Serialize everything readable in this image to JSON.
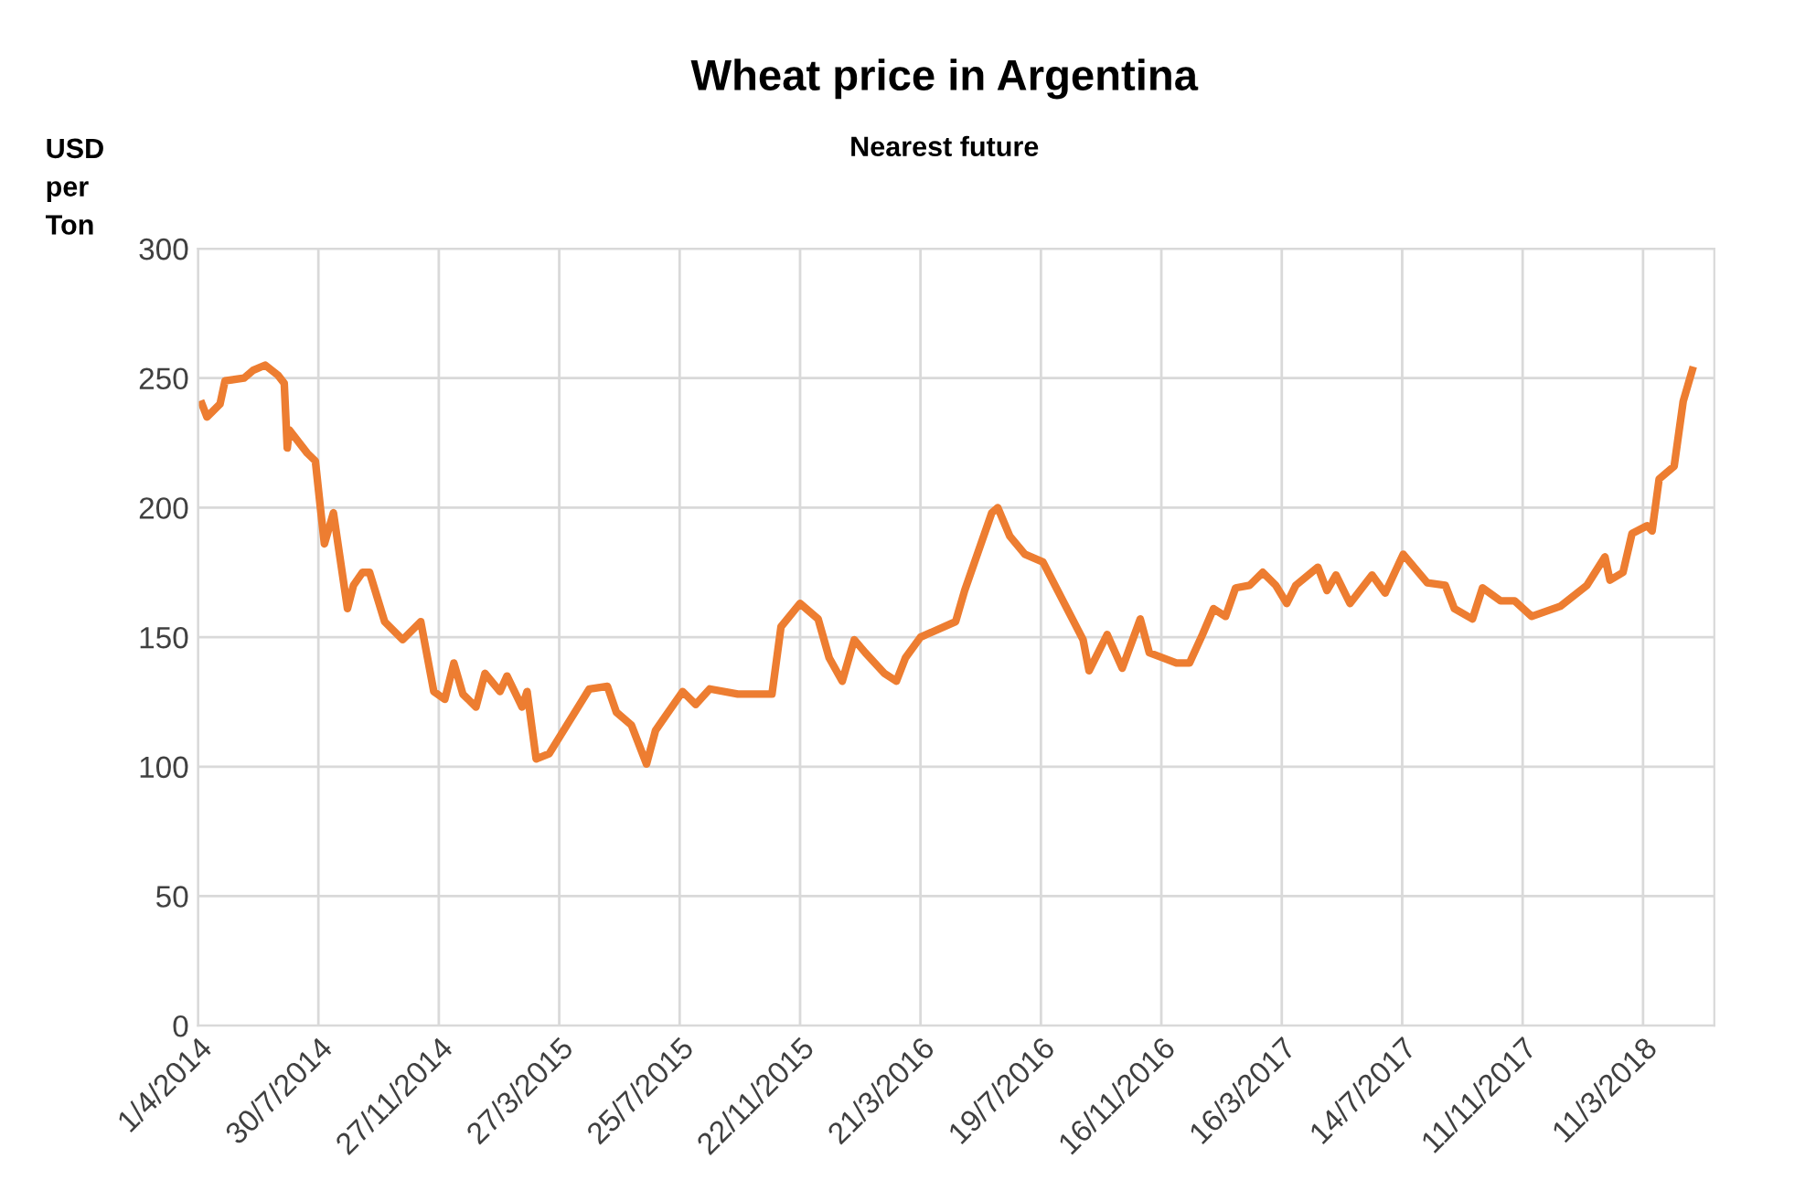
{
  "chart_data": {
    "type": "line",
    "title": "Wheat price in Argentina",
    "subtitle": "Nearest future",
    "ylabel": "USD\nper\nTon",
    "x": [
      "2014-04-05",
      "2014-04-10",
      "2014-04-23",
      "2014-04-28",
      "2014-05-17",
      "2014-05-26",
      "2014-06-07",
      "2014-06-20",
      "2014-06-26",
      "2014-06-29",
      "2014-07-01",
      "2014-07-19",
      "2014-07-27",
      "2014-08-01",
      "2014-08-05",
      "2014-08-14",
      "2014-08-28",
      "2014-09-03",
      "2014-09-12",
      "2014-09-19",
      "2014-10-04",
      "2014-10-22",
      "2014-11-09",
      "2014-11-22",
      "2014-12-03",
      "2014-12-12",
      "2014-12-21",
      "2015-01-03",
      "2015-01-12",
      "2015-01-27",
      "2015-02-03",
      "2015-02-18",
      "2015-02-23",
      "2015-03-04",
      "2015-03-17",
      "2015-04-26",
      "2015-05-14",
      "2015-05-23",
      "2015-06-07",
      "2015-06-22",
      "2015-07-01",
      "2015-07-10",
      "2015-07-28",
      "2015-08-10",
      "2015-08-24",
      "2015-09-21",
      "2015-10-25",
      "2015-11-03",
      "2015-11-22",
      "2015-12-10",
      "2015-12-21",
      "2016-01-03",
      "2016-01-15",
      "2016-01-26",
      "2016-02-14",
      "2016-02-26",
      "2016-03-06",
      "2016-03-21",
      "2016-04-25",
      "2016-05-04",
      "2016-05-31",
      "2016-06-06",
      "2016-06-18",
      "2016-07-03",
      "2016-07-21",
      "2016-08-30",
      "2016-09-05",
      "2016-09-23",
      "2016-10-08",
      "2016-10-26",
      "2016-11-04",
      "2016-12-01",
      "2016-12-14",
      "2016-12-27",
      "2017-01-07",
      "2017-01-19",
      "2017-01-29",
      "2017-02-12",
      "2017-02-25",
      "2017-03-10",
      "2017-03-21",
      "2017-03-30",
      "2017-04-21",
      "2017-04-30",
      "2017-05-09",
      "2017-05-23",
      "2017-06-14",
      "2017-06-27",
      "2017-07-15",
      "2017-08-08",
      "2017-08-26",
      "2017-09-04",
      "2017-09-22",
      "2017-10-02",
      "2017-10-20",
      "2017-11-03",
      "2017-11-20",
      "2017-12-19",
      "2018-01-14",
      "2018-02-01",
      "2018-02-06",
      "2018-02-19",
      "2018-02-28",
      "2018-03-15",
      "2018-03-20",
      "2018-03-27",
      "2018-04-11",
      "2018-04-20",
      "2018-04-29"
    ],
    "series": [
      {
        "color": "#ed7d31",
        "values": [
          240,
          235,
          240,
          249,
          250,
          253,
          255,
          251,
          248,
          223,
          230,
          221,
          218,
          200,
          186,
          198,
          161,
          170,
          175,
          175,
          156,
          149,
          156,
          129,
          126,
          140,
          128,
          123,
          136,
          129,
          135,
          123,
          129,
          103,
          105,
          130,
          131,
          121,
          116,
          101,
          114,
          119,
          129,
          124,
          130,
          128,
          128,
          154,
          163,
          157,
          142,
          133,
          149,
          144,
          136,
          133,
          142,
          150,
          156,
          168,
          198,
          200,
          189,
          182,
          179,
          149,
          137,
          151,
          138,
          157,
          144,
          140,
          140,
          151,
          161,
          158,
          169,
          170,
          175,
          170,
          163,
          170,
          177,
          168,
          174,
          163,
          174,
          167,
          182,
          171,
          170,
          161,
          157,
          169,
          164,
          164,
          158,
          162,
          170,
          181,
          172,
          175,
          190,
          193,
          191,
          211,
          216,
          241,
          253
        ]
      }
    ],
    "xlim": [
      "2014-04-01",
      "2018-05-21"
    ],
    "xticks": [
      {
        "value": "2014-04-01",
        "label": "1/4/2014"
      },
      {
        "value": "2014-07-30",
        "label": "30/7/2014"
      },
      {
        "value": "2014-11-27",
        "label": "27/11/2014"
      },
      {
        "value": "2015-03-27",
        "label": "27/3/2015"
      },
      {
        "value": "2015-07-25",
        "label": "25/7/2015"
      },
      {
        "value": "2015-11-22",
        "label": "22/11/2015"
      },
      {
        "value": "2016-03-21",
        "label": "21/3/2016"
      },
      {
        "value": "2016-07-19",
        "label": "19/7/2016"
      },
      {
        "value": "2016-11-16",
        "label": "16/11/2016"
      },
      {
        "value": "2017-03-16",
        "label": "16/3/2017"
      },
      {
        "value": "2017-07-14",
        "label": "14/7/2017"
      },
      {
        "value": "2017-11-11",
        "label": "11/11/2017"
      },
      {
        "value": "2018-03-11",
        "label": "11/3/2018"
      }
    ],
    "ylim": [
      0,
      300
    ],
    "yticks": [
      0,
      50,
      100,
      150,
      200,
      250,
      300
    ],
    "grid": true,
    "line_style": "solid",
    "marker": "none"
  }
}
